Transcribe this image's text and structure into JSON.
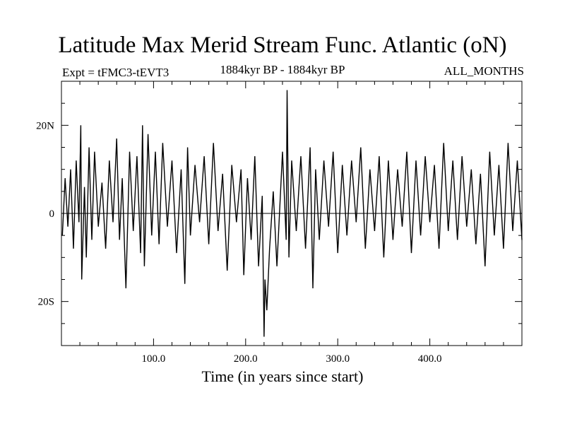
{
  "chart_data": {
    "type": "line",
    "title": "Latitude Max Merid Stream Func. Atlantic (oN)",
    "subtitle_left": "Expt = tFMC3-tEVT3",
    "subtitle_center": "1884kyr BP - 1884kyr BP",
    "subtitle_right": "ALL_MONTHS",
    "xlabel": "Time (in years since start)",
    "ylabel": "",
    "xlim": [
      0,
      500
    ],
    "ylim": [
      -30,
      30
    ],
    "xticks": [
      {
        "value": 100,
        "label": "100.0"
      },
      {
        "value": 200,
        "label": "200.0"
      },
      {
        "value": 300,
        "label": "300.0"
      },
      {
        "value": 400,
        "label": "400.0"
      }
    ],
    "yticks": [
      {
        "value": 20,
        "label": "20N"
      },
      {
        "value": 0,
        "label": "0"
      },
      {
        "value": -20,
        "label": "20S"
      }
    ],
    "zero_line": true,
    "grid": false,
    "series": [
      {
        "color": "#000000",
        "x": [
          1,
          4,
          7,
          10,
          13,
          16,
          19,
          21,
          22,
          25,
          27,
          30,
          33,
          36,
          40,
          44,
          48,
          52,
          56,
          60,
          63,
          66,
          70,
          74,
          78,
          82,
          86,
          88,
          90,
          94,
          98,
          102,
          106,
          110,
          115,
          120,
          125,
          130,
          134,
          137,
          140,
          145,
          150,
          155,
          160,
          165,
          170,
          175,
          180,
          185,
          190,
          195,
          198,
          202,
          206,
          210,
          214,
          218,
          220,
          221,
          223,
          226,
          230,
          234,
          240,
          244,
          245,
          247,
          250,
          255,
          260,
          265,
          270,
          273,
          276,
          280,
          285,
          290,
          295,
          300,
          305,
          310,
          315,
          320,
          325,
          330,
          335,
          340,
          345,
          350,
          355,
          360,
          365,
          370,
          375,
          380,
          385,
          390,
          395,
          400,
          405,
          410,
          415,
          420,
          425,
          430,
          435,
          440,
          445,
          450,
          455,
          460,
          465,
          470,
          475,
          480,
          485,
          490,
          495,
          500
        ],
        "y": [
          -5,
          8,
          -3,
          10,
          -8,
          12,
          -2,
          20,
          -15,
          6,
          -10,
          15,
          -6,
          14,
          -3,
          7,
          -8,
          12,
          -2,
          17,
          -6,
          8,
          -17,
          14,
          -4,
          13,
          -9,
          20,
          -12,
          18,
          -5,
          14,
          -7,
          16,
          -3,
          12,
          -9,
          10,
          -16,
          15,
          -5,
          11,
          -2,
          13,
          -7,
          16,
          -4,
          9,
          -13,
          11,
          -2,
          10,
          -14,
          8,
          -6,
          13,
          -12,
          4,
          -28,
          -15,
          -22,
          -8,
          5,
          -12,
          14,
          -6,
          28,
          -10,
          12,
          -4,
          13,
          -8,
          15,
          -17,
          10,
          -6,
          12,
          -3,
          14,
          -9,
          11,
          -5,
          12,
          -2,
          15,
          -8,
          10,
          -4,
          13,
          -10,
          12,
          -6,
          10,
          -3,
          14,
          -9,
          12,
          -5,
          13,
          -2,
          11,
          -8,
          16,
          -4,
          12,
          -6,
          13,
          -3,
          10,
          -7,
          9,
          -12,
          14,
          -5,
          11,
          -8,
          16,
          -4,
          12,
          -6
        ]
      }
    ]
  }
}
